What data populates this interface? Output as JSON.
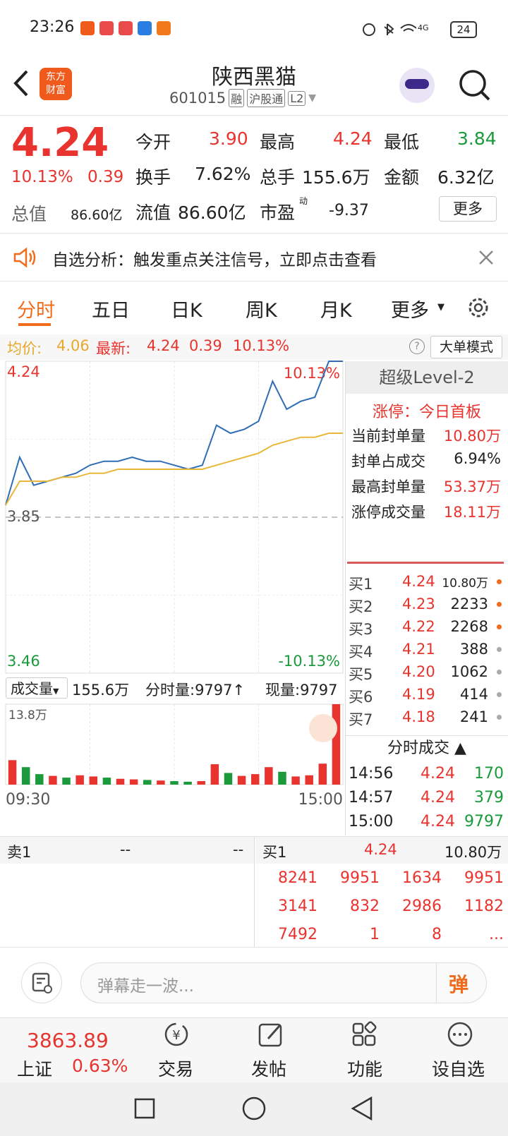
{
  "status_bar": {
    "time": "23:26",
    "network": "4G",
    "battery": "24"
  },
  "header": {
    "logo": [
      "东方",
      "财富"
    ],
    "title": "陕西黑猫",
    "code": "601015",
    "tags": [
      "融",
      "沪股通",
      "L2"
    ]
  },
  "quote": {
    "price": "4.24",
    "change_pct": "10.13%",
    "change": "0.39",
    "fields": [
      {
        "label": "今开",
        "value": "3.90"
      },
      {
        "label": "最高",
        "value": "4.24"
      },
      {
        "label": "最低",
        "value": "3.84"
      },
      {
        "label": "换手",
        "value": "7.62%"
      },
      {
        "label": "总手",
        "value": "155.6万"
      },
      {
        "label": "金额",
        "value": "6.32亿"
      },
      {
        "label": "总值",
        "value": "86.60亿"
      },
      {
        "label": "流值",
        "value": "86.60亿"
      },
      {
        "label": "市盈",
        "sup": "动",
        "value": "-9.37"
      }
    ],
    "more_button": "更多"
  },
  "banner": {
    "text": "自选分析：触发重点关注信号，立即点击查看"
  },
  "tabs": [
    "分时",
    "五日",
    "日K",
    "周K",
    "月K",
    "更多"
  ],
  "info_line": {
    "avg_label": "均价:",
    "avg": "4.06",
    "latest_label": "最新:",
    "latest": "4.24",
    "change": "0.39",
    "change_pct": "10.13%",
    "mode_button": "大单模式"
  },
  "chart_data": [
    {
      "type": "line",
      "ylim": [
        3.46,
        4.24
      ],
      "yticks": [
        4.24,
        3.85,
        3.46
      ],
      "pct_labels": [
        "10.13%",
        "-10.13%"
      ],
      "xlabels": [
        "09:30",
        "15:00"
      ],
      "series": [
        {
          "color": "#2f6db5",
          "values": [
            3.88,
            4.0,
            3.93,
            3.94,
            3.95,
            3.96,
            3.98,
            3.99,
            3.99,
            4.0,
            3.99,
            3.99,
            3.98,
            3.97,
            3.98,
            4.08,
            4.06,
            4.07,
            4.09,
            4.19,
            4.12,
            4.14,
            4.15,
            4.24,
            4.24
          ]
        },
        {
          "color": "#e8b83a",
          "values": [
            3.88,
            3.94,
            3.94,
            3.94,
            3.95,
            3.95,
            3.96,
            3.96,
            3.97,
            3.97,
            3.97,
            3.97,
            3.97,
            3.97,
            3.97,
            3.98,
            3.99,
            4.0,
            4.01,
            4.03,
            4.04,
            4.05,
            4.05,
            4.06,
            4.06
          ]
        }
      ]
    },
    {
      "type": "bar",
      "ylim": [
        0,
        138000
      ],
      "yticks": [
        {
          "value": 138000,
          "label": "13.8万"
        }
      ],
      "values": [
        42000,
        30000,
        18000,
        15000,
        12000,
        16000,
        14000,
        12000,
        10000,
        9000,
        8000,
        7000,
        6000,
        5000,
        6000,
        35000,
        20000,
        15000,
        18000,
        30000,
        22000,
        14000,
        16000,
        36000,
        138000
      ],
      "colors": [
        "#e8332e",
        "#1a9a3a",
        "#1a9a3a",
        "#e8332e",
        "#1a9a3a",
        "#e8332e",
        "#e8332e",
        "#1a9a3a",
        "#e8332e",
        "#e8332e",
        "#1a9a3a",
        "#e8332e",
        "#1a9a3a",
        "#1a9a3a",
        "#e8332e",
        "#e8332e",
        "#1a9a3a",
        "#e8332e",
        "#e8332e",
        "#e8332e",
        "#1a9a3a",
        "#e8332e",
        "#e8332e",
        "#e8332e",
        "#e8332e"
      ]
    }
  ],
  "volume_line": {
    "label": "成交量",
    "total": "155.6万",
    "minute": "分时量:9797↑",
    "current": "现量:9797"
  },
  "level2": {
    "title": "超级Level-2",
    "limit": "涨停：今日首板",
    "rows": [
      [
        "当前封单量",
        "10.80万"
      ],
      [
        "封单占成交",
        "6.94%"
      ],
      [
        "最高封单量",
        "53.37万"
      ],
      [
        "涨停成交量",
        "18.11万"
      ]
    ]
  },
  "order_book": [
    [
      "买1",
      "4.24",
      "10.80万"
    ],
    [
      "买2",
      "4.23",
      "2233"
    ],
    [
      "买3",
      "4.22",
      "2268"
    ],
    [
      "买4",
      "4.21",
      "388"
    ],
    [
      "买5",
      "4.20",
      "1062"
    ],
    [
      "买6",
      "4.19",
      "414"
    ],
    [
      "买7",
      "4.18",
      "241"
    ]
  ],
  "ticks": {
    "title": "分时成交",
    "rows": [
      [
        "14:56",
        "4.24",
        "170"
      ],
      [
        "14:57",
        "4.24",
        "379"
      ],
      [
        "15:00",
        "4.24",
        "9797"
      ]
    ]
  },
  "queue": {
    "sell": [
      "卖1",
      "--",
      "--"
    ],
    "buy": [
      "买1",
      "4.24",
      "10.80万"
    ],
    "grid": [
      [
        "8241",
        "9951",
        "1634",
        "9951"
      ],
      [
        "3141",
        "832",
        "2986",
        "1182"
      ],
      [
        "7492",
        "1",
        "8",
        "..."
      ]
    ]
  },
  "comment": {
    "placeholder": "弹幕走一波...",
    "button": "弹"
  },
  "bottom_nav": {
    "index_value": "3863.89",
    "index_name": "上证",
    "index_pct": "0.63%",
    "items": [
      "交易",
      "发帖",
      "功能",
      "设自选"
    ]
  }
}
